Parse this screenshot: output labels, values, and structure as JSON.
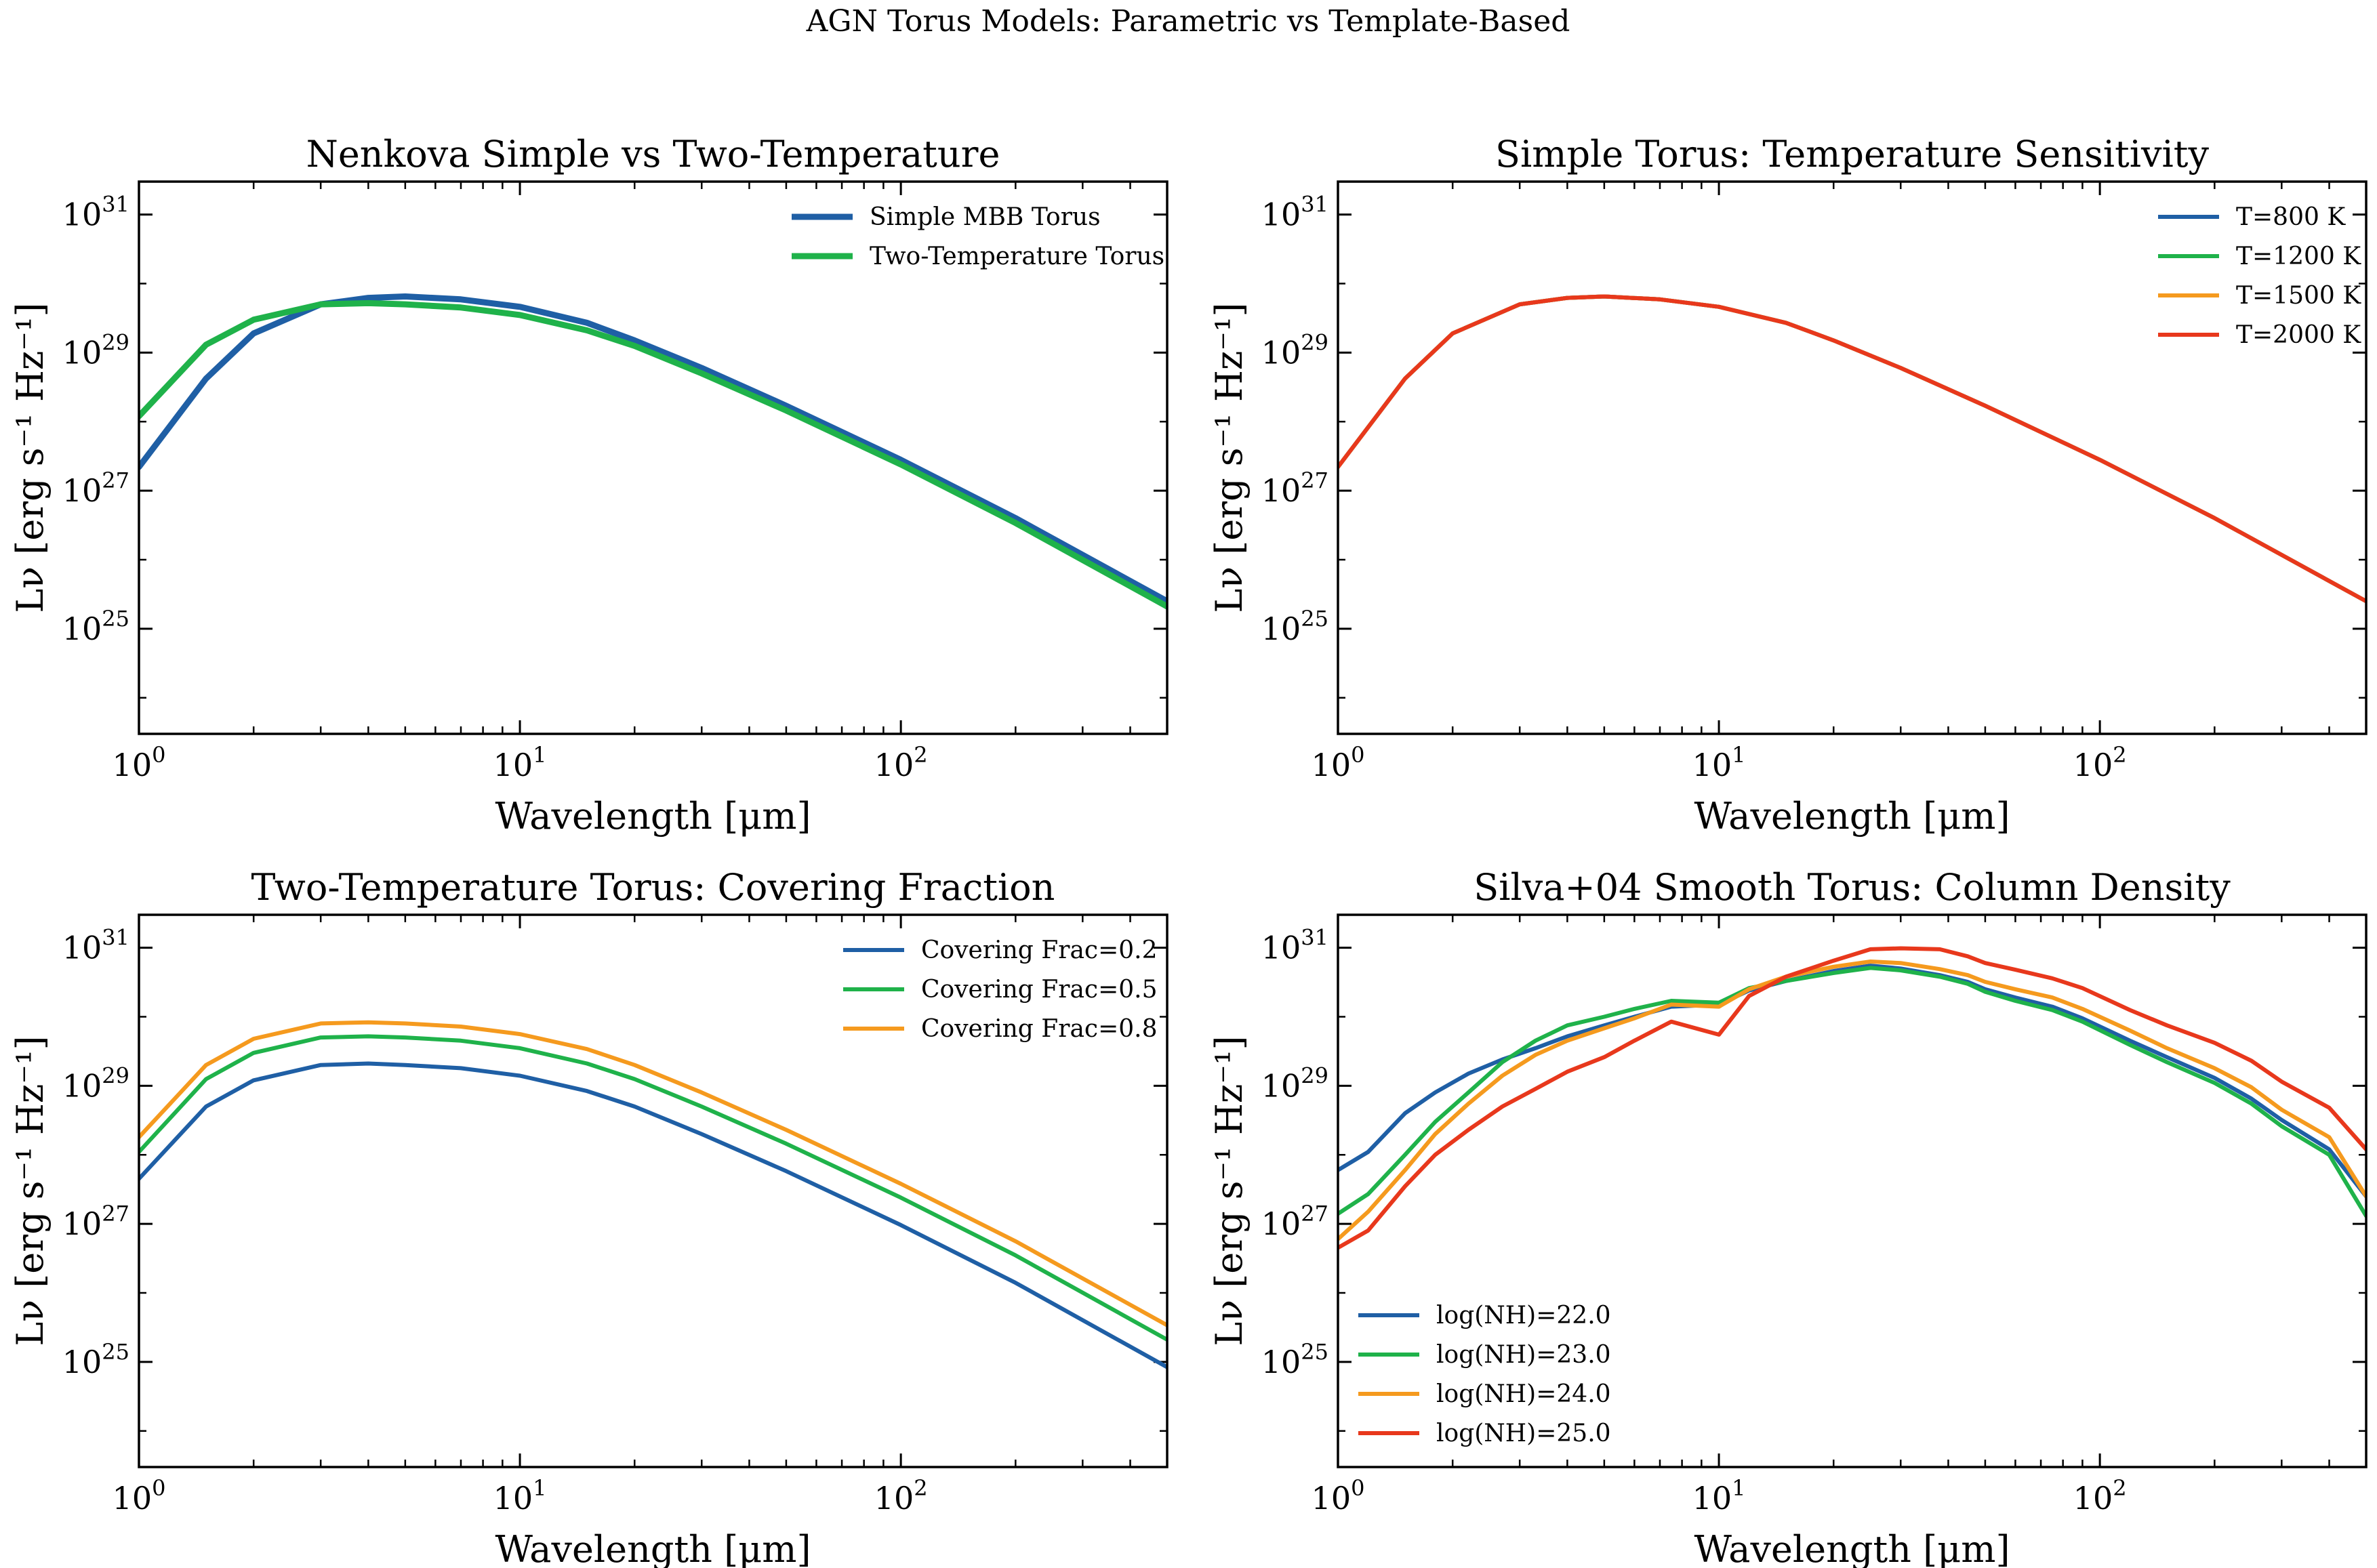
{
  "figure": {
    "suptitle": "AGN Torus Models: Parametric vs Template-Based"
  },
  "chart_data": [
    {
      "type": "line",
      "title": "Nenkova Simple vs Two-Temperature",
      "xlabel": "Wavelength [μm]",
      "ylabel": "Lν [erg s⁻¹ Hz⁻¹]",
      "xscale": "log",
      "yscale": "log",
      "xlim": [
        1,
        500
      ],
      "ylim": [
        3e+23,
        3e+31
      ],
      "xticks": [
        1,
        10,
        100
      ],
      "xtick_labels": [
        {
          "base": "10",
          "exp": "0"
        },
        {
          "base": "10",
          "exp": "1"
        },
        {
          "base": "10",
          "exp": "2"
        }
      ],
      "yticks": [
        1e+25,
        1e+27,
        1e+29,
        1e+31
      ],
      "ytick_labels": [
        {
          "base": "10",
          "exp": "25"
        },
        {
          "base": "10",
          "exp": "27"
        },
        {
          "base": "10",
          "exp": "29"
        },
        {
          "base": "10",
          "exp": "31"
        }
      ],
      "grid": false,
      "legend_position": "top-right",
      "line_width": 9,
      "x": [
        1,
        1.5,
        2,
        3,
        4,
        5,
        7,
        10,
        15,
        20,
        30,
        50,
        100,
        200,
        500
      ],
      "series": [
        {
          "name": "Simple MBB Torus",
          "color": "#1f5fa5",
          "values": [
            2.2e+27,
            4.2e+28,
            1.9e+29,
            5e+29,
            6.2e+29,
            6.5e+29,
            5.9e+29,
            4.6e+29,
            2.7e+29,
            1.5e+29,
            6e+28,
            1.7e+28,
            2.8e+27,
            4e+26,
            2.5e+25
          ]
        },
        {
          "name": "Two-Temperature Torus",
          "color": "#1fb24a",
          "values": [
            1.2e+28,
            1.3e+29,
            3e+29,
            5e+29,
            5.2e+29,
            5e+29,
            4.5e+29,
            3.5e+29,
            2.1e+29,
            1.25e+29,
            5e+28,
            1.45e+28,
            2.4e+27,
            3.4e+26,
            2.1e+25
          ]
        }
      ]
    },
    {
      "type": "line",
      "title": "Simple Torus: Temperature Sensitivity",
      "xlabel": "Wavelength [μm]",
      "ylabel": "Lν [erg s⁻¹ Hz⁻¹]",
      "xscale": "log",
      "yscale": "log",
      "xlim": [
        1,
        500
      ],
      "ylim": [
        3e+23,
        3e+31
      ],
      "xticks": [
        1,
        10,
        100
      ],
      "xtick_labels": [
        {
          "base": "10",
          "exp": "0"
        },
        {
          "base": "10",
          "exp": "1"
        },
        {
          "base": "10",
          "exp": "2"
        }
      ],
      "yticks": [
        1e+25,
        1e+27,
        1e+29,
        1e+31
      ],
      "ytick_labels": [
        {
          "base": "10",
          "exp": "25"
        },
        {
          "base": "10",
          "exp": "27"
        },
        {
          "base": "10",
          "exp": "29"
        },
        {
          "base": "10",
          "exp": "31"
        }
      ],
      "grid": false,
      "legend_position": "top-right",
      "line_width": 6,
      "x": [
        1,
        1.5,
        2,
        3,
        4,
        5,
        7,
        10,
        15,
        20,
        30,
        50,
        100,
        200,
        500
      ],
      "series": [
        {
          "name": "T=800 K",
          "color": "#1f5fa5",
          "values": [
            2.2e+27,
            4.2e+28,
            1.9e+29,
            5e+29,
            6.2e+29,
            6.5e+29,
            5.9e+29,
            4.6e+29,
            2.7e+29,
            1.5e+29,
            6e+28,
            1.7e+28,
            2.8e+27,
            4e+26,
            2.5e+25
          ]
        },
        {
          "name": "T=1200 K",
          "color": "#1fb24a",
          "values": [
            2.2e+27,
            4.2e+28,
            1.9e+29,
            5e+29,
            6.2e+29,
            6.5e+29,
            5.9e+29,
            4.6e+29,
            2.7e+29,
            1.5e+29,
            6e+28,
            1.7e+28,
            2.8e+27,
            4e+26,
            2.5e+25
          ]
        },
        {
          "name": "T=1500 K",
          "color": "#f59a1e",
          "values": [
            2.2e+27,
            4.2e+28,
            1.9e+29,
            5e+29,
            6.2e+29,
            6.5e+29,
            5.9e+29,
            4.6e+29,
            2.7e+29,
            1.5e+29,
            6e+28,
            1.7e+28,
            2.8e+27,
            4e+26,
            2.5e+25
          ]
        },
        {
          "name": "T=2000 K",
          "color": "#e8381c",
          "values": [
            2.2e+27,
            4.2e+28,
            1.9e+29,
            5e+29,
            6.2e+29,
            6.5e+29,
            5.9e+29,
            4.6e+29,
            2.7e+29,
            1.5e+29,
            6e+28,
            1.7e+28,
            2.8e+27,
            4e+26,
            2.5e+25
          ]
        }
      ]
    },
    {
      "type": "line",
      "title": "Two-Temperature Torus: Covering Fraction",
      "xlabel": "Wavelength [μm]",
      "ylabel": "Lν [erg s⁻¹ Hz⁻¹]",
      "xscale": "log",
      "yscale": "log",
      "xlim": [
        1,
        500
      ],
      "ylim": [
        3e+23,
        3e+31
      ],
      "xticks": [
        1,
        10,
        100
      ],
      "xtick_labels": [
        {
          "base": "10",
          "exp": "0"
        },
        {
          "base": "10",
          "exp": "1"
        },
        {
          "base": "10",
          "exp": "2"
        }
      ],
      "yticks": [
        1e+25,
        1e+27,
        1e+29,
        1e+31
      ],
      "ytick_labels": [
        {
          "base": "10",
          "exp": "25"
        },
        {
          "base": "10",
          "exp": "27"
        },
        {
          "base": "10",
          "exp": "29"
        },
        {
          "base": "10",
          "exp": "31"
        }
      ],
      "grid": false,
      "legend_position": "top-right",
      "line_width": 6,
      "x": [
        1,
        1.5,
        2,
        3,
        4,
        5,
        7,
        10,
        15,
        20,
        30,
        50,
        100,
        200,
        500
      ],
      "series": [
        {
          "name": "Covering Frac=0.2",
          "color": "#1f5fa5",
          "values": [
            4.5e+27,
            5e+28,
            1.2e+29,
            2e+29,
            2.1e+29,
            2e+29,
            1.8e+29,
            1.4e+29,
            8.4e+28,
            5e+28,
            2e+28,
            5.8e+27,
            9.6e+26,
            1.4e+26,
            8.4e+24
          ]
        },
        {
          "name": "Covering Frac=0.5",
          "color": "#1fb24a",
          "values": [
            1.1e+28,
            1.25e+29,
            3e+29,
            5e+29,
            5.2e+29,
            5e+29,
            4.5e+29,
            3.5e+29,
            2.1e+29,
            1.25e+29,
            5e+28,
            1.45e+28,
            2.4e+27,
            3.5e+26,
            2.1e+25
          ]
        },
        {
          "name": "Covering Frac=0.8",
          "color": "#f59a1e",
          "values": [
            1.8e+28,
            2e+29,
            4.8e+29,
            8e+29,
            8.3e+29,
            8e+29,
            7.2e+29,
            5.6e+29,
            3.4e+29,
            2e+29,
            8e+28,
            2.3e+28,
            3.8e+27,
            5.6e+26,
            3.4e+25
          ]
        }
      ]
    },
    {
      "type": "line",
      "title": "Silva+04 Smooth Torus: Column Density",
      "xlabel": "Wavelength [μm]",
      "ylabel": "Lν [erg s⁻¹ Hz⁻¹]",
      "xscale": "log",
      "yscale": "log",
      "xlim": [
        1,
        500
      ],
      "ylim": [
        3e+23,
        3e+31
      ],
      "xticks": [
        1,
        10,
        100
      ],
      "xtick_labels": [
        {
          "base": "10",
          "exp": "0"
        },
        {
          "base": "10",
          "exp": "1"
        },
        {
          "base": "10",
          "exp": "2"
        }
      ],
      "yticks": [
        1e+25,
        1e+27,
        1e+29,
        1e+31
      ],
      "ytick_labels": [
        {
          "base": "10",
          "exp": "25"
        },
        {
          "base": "10",
          "exp": "27"
        },
        {
          "base": "10",
          "exp": "29"
        },
        {
          "base": "10",
          "exp": "31"
        }
      ],
      "grid": false,
      "legend_position": "bottom-left",
      "line_width": 6,
      "x": [
        1,
        1.2,
        1.5,
        1.8,
        2.2,
        2.7,
        3.3,
        4,
        5,
        6,
        7.5,
        10,
        12,
        15,
        20,
        25,
        30,
        38,
        45,
        50,
        60,
        75,
        90,
        120,
        150,
        200,
        250,
        300,
        400,
        500
      ],
      "series": [
        {
          "name": "log(NH)=22.0",
          "color": "#1f5fa5",
          "values": [
            6e+27,
            1.1e+28,
            4e+28,
            8e+28,
            1.5e+29,
            2.4e+29,
            3.5e+29,
            5.2e+29,
            7.5e+29,
            1e+30,
            1.4e+30,
            1.5e+30,
            2.4e+30,
            3.3e+30,
            4.6e+30,
            5.5e+30,
            5e+30,
            4e+30,
            3.2e+30,
            2.5e+30,
            1.9e+30,
            1.4e+30,
            9.5e+29,
            4.5e+29,
            2.6e+29,
            1.3e+29,
            6.5e+28,
            3.2e+28,
            1.2e+28,
            2.5e+27
          ]
        },
        {
          "name": "log(NH)=23.0",
          "color": "#1fb24a",
          "values": [
            1.4e+27,
            2.7e+27,
            1e+28,
            3e+28,
            8e+28,
            2.2e+29,
            4.5e+29,
            7.5e+29,
            1e+30,
            1.3e+30,
            1.7e+30,
            1.6e+30,
            2.6e+30,
            3.3e+30,
            4.3e+30,
            5.1e+30,
            4.7e+30,
            3.8e+30,
            3e+30,
            2.3e+30,
            1.7e+30,
            1.25e+30,
            8.5e+29,
            3.9e+29,
            2.2e+29,
            1.1e+29,
            5.5e+28,
            2.6e+28,
            1e+28,
            1.3e+27
          ]
        },
        {
          "name": "log(NH)=24.0",
          "color": "#f59a1e",
          "values": [
            6e+26,
            1.5e+27,
            6e+27,
            2e+28,
            5.5e+28,
            1.4e+29,
            2.8e+29,
            4.5e+29,
            6.8e+29,
            9.5e+29,
            1.5e+30,
            1.4e+30,
            2.5e+30,
            3.8e+30,
            5.3e+30,
            6.3e+30,
            6e+30,
            4.9e+30,
            4e+30,
            3.2e+30,
            2.5e+30,
            1.9e+30,
            1.3e+30,
            6.3e+29,
            3.5e+29,
            1.8e+29,
            9.5e+28,
            4.5e+28,
            1.8e+28,
            2.5e+27
          ]
        },
        {
          "name": "log(NH)=25.0",
          "color": "#e8381c",
          "values": [
            4.5e+26,
            8e+26,
            3.5e+27,
            1e+28,
            2.3e+28,
            5e+28,
            9e+28,
            1.6e+29,
            2.6e+29,
            4.5e+29,
            8.5e+29,
            5.5e+29,
            2e+30,
            3.8e+30,
            6.5e+30,
            9.5e+30,
            9.8e+30,
            9.5e+30,
            7.5e+30,
            6e+30,
            4.8e+30,
            3.6e+30,
            2.6e+30,
            1.25e+30,
            7.5e+29,
            4.2e+29,
            2.3e+29,
            1.15e+29,
            4.8e+28,
            1.2e+28
          ]
        }
      ]
    }
  ]
}
